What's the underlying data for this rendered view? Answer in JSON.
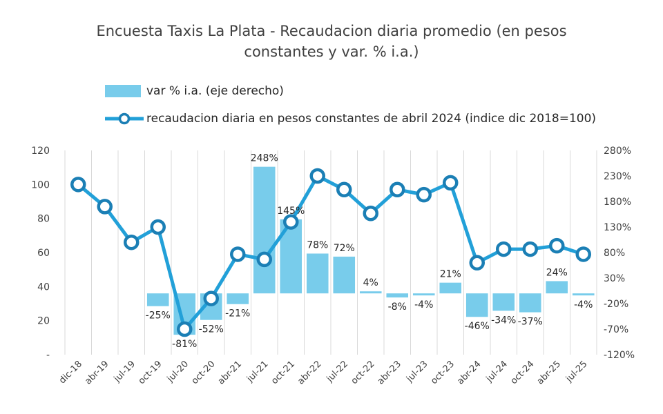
{
  "title_line1": "Encuesta Taxis La Plata - Recaudacion diaria promedio (en pesos",
  "title_line2": "constantes y var. % i.a.)",
  "legend": {
    "bar_label": "var % i.a. (eje derecho)",
    "line_label": "recaudacion diaria en pesos constantes de abril 2024 (indice dic 2018=100)"
  },
  "colors": {
    "bar": "#78cceb",
    "line": "#22a0d8",
    "marker_fill": "#ffffff",
    "marker_stroke": "#1b7fb5"
  },
  "chart_data": {
    "type": "bar+line",
    "categories": [
      "dic-18",
      "abr-19",
      "jul-19",
      "oct-19",
      "jul-20",
      "oct-20",
      "abr-21",
      "jul-21",
      "oct-21",
      "abr-22",
      "jul-22",
      "oct-22",
      "abr-23",
      "jul-23",
      "oct-23",
      "abr-24",
      "jul-24",
      "oct-24",
      "abr-25",
      "jul-25"
    ],
    "x_tick_labels": [
      "dic-18",
      "abr-19",
      "jul-19",
      "oct-19",
      "jul-20",
      "oct-20",
      "abr-21",
      "jul-21",
      "oct-21",
      "abr-22",
      "jul-22",
      "oct-22",
      "abr-23",
      "jul-23",
      "oct-23",
      "abr-24",
      "jul-24",
      "oct-24",
      "abr-25",
      "jul-25"
    ],
    "line_values": [
      100,
      87,
      66,
      75,
      15,
      33,
      59,
      56,
      78,
      105,
      97,
      83,
      97,
      94,
      101,
      54,
      62,
      62,
      64,
      59
    ],
    "bar_values": [
      null,
      null,
      null,
      -25,
      -81,
      -52,
      -21,
      248,
      145,
      78,
      72,
      4,
      -8,
      -4,
      21,
      -46,
      -34,
      -37,
      24,
      -4
    ],
    "bar_labels": [
      "",
      "",
      "",
      "-25%",
      "-81%",
      "-52%",
      "-21%",
      "248%",
      "145%",
      "78%",
      "72%",
      "4%",
      "-8%",
      "-4%",
      "21%",
      "-46%",
      "-34%",
      "-37%",
      "24%",
      "-4%"
    ],
    "y_left": {
      "range": [
        0,
        120
      ],
      "ticks": [
        0,
        20,
        40,
        60,
        80,
        100,
        120
      ],
      "tick_labels": [
        "-",
        "20",
        "40",
        "60",
        "80",
        "100",
        "120"
      ]
    },
    "y_right": {
      "range": [
        -120,
        280
      ],
      "ticks": [
        -120,
        -70,
        -20,
        30,
        80,
        130,
        180,
        230,
        280
      ],
      "tick_labels": [
        "-120%",
        "-70%",
        "-20%",
        "30%",
        "80%",
        "130%",
        "180%",
        "230%",
        "280%"
      ]
    },
    "grid": "vertical",
    "legend_position": "top"
  }
}
